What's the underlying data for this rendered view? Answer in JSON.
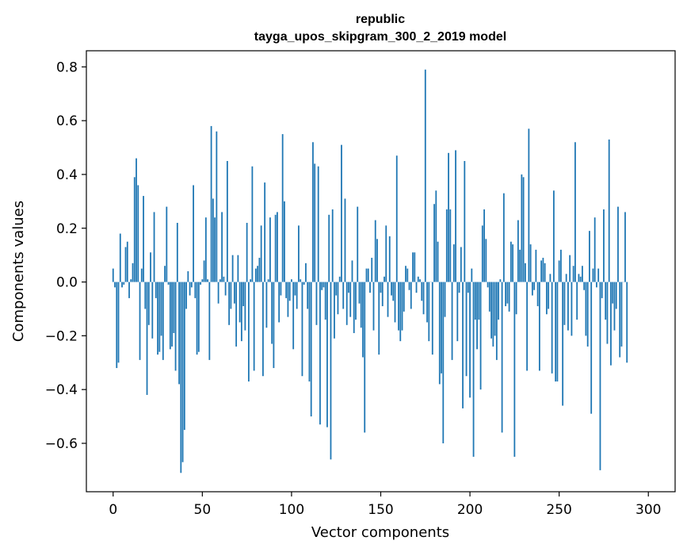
{
  "chart_data": {
    "type": "bar",
    "title_line1": "republic",
    "title_line2": "tayga_upos_skipgram_300_2_2019 model",
    "xlabel": "Vector components",
    "ylabel": "Components values",
    "xlim": [
      -15,
      315
    ],
    "ylim": [
      -0.78,
      0.86
    ],
    "x_ticks": [
      0,
      50,
      100,
      150,
      200,
      250,
      300
    ],
    "x_tick_labels": [
      "0",
      "50",
      "100",
      "150",
      "200",
      "250",
      "300"
    ],
    "y_ticks": [
      -0.6,
      -0.4,
      -0.2,
      0.0,
      0.2,
      0.4,
      0.6,
      0.8
    ],
    "y_tick_labels": [
      "−0.6",
      "−0.4",
      "−0.2",
      "0.0",
      "0.2",
      "0.4",
      "0.6",
      "0.8"
    ],
    "bar_color": "#1f77b4",
    "values": [
      0.05,
      -0.02,
      -0.32,
      -0.3,
      0.18,
      -0.02,
      -0.01,
      0.13,
      0.15,
      -0.06,
      0.01,
      0.07,
      0.39,
      0.46,
      0.36,
      -0.29,
      0.05,
      0.32,
      -0.1,
      -0.42,
      -0.16,
      0.11,
      -0.21,
      0.26,
      -0.06,
      -0.27,
      -0.26,
      -0.2,
      -0.29,
      0.06,
      0.28,
      -0.01,
      -0.25,
      -0.24,
      -0.19,
      -0.33,
      0.22,
      -0.38,
      -0.71,
      -0.67,
      -0.55,
      -0.1,
      0.04,
      -0.05,
      -0.02,
      0.36,
      -0.06,
      -0.27,
      -0.26,
      -0.01,
      0.01,
      0.08,
      0.24,
      0.01,
      -0.29,
      0.58,
      0.31,
      0.24,
      0.56,
      -0.08,
      0.01,
      0.26,
      0.02,
      -0.05,
      0.45,
      -0.16,
      -0.1,
      0.1,
      -0.08,
      -0.24,
      0.1,
      -0.15,
      -0.22,
      -0.09,
      -0.18,
      0.22,
      -0.37,
      0.01,
      0.43,
      -0.33,
      0.05,
      0.06,
      0.09,
      0.21,
      -0.35,
      0.37,
      -0.17,
      0.01,
      0.24,
      -0.23,
      -0.32,
      0.25,
      0.26,
      -0.15,
      -0.05,
      0.55,
      0.3,
      -0.06,
      -0.13,
      -0.07,
      0.01,
      -0.25,
      -0.05,
      -0.1,
      0.21,
      0.01,
      -0.35,
      -0.01,
      0.07,
      -0.1,
      -0.37,
      -0.5,
      0.52,
      0.44,
      -0.16,
      0.43,
      -0.53,
      -0.03,
      -0.02,
      -0.14,
      -0.54,
      0.25,
      -0.66,
      0.27,
      -0.21,
      -0.05,
      -0.12,
      0.02,
      0.51,
      -0.1,
      0.31,
      -0.16,
      -0.04,
      -0.13,
      0.08,
      -0.19,
      -0.14,
      0.28,
      -0.08,
      -0.17,
      -0.28,
      -0.56,
      0.05,
      0.05,
      -0.04,
      0.09,
      -0.18,
      0.23,
      0.16,
      -0.27,
      -0.04,
      -0.09,
      0.02,
      0.21,
      -0.13,
      0.17,
      -0.05,
      -0.07,
      -0.15,
      0.47,
      -0.18,
      -0.22,
      -0.18,
      -0.11,
      0.06,
      0.05,
      -0.03,
      -0.1,
      0.11,
      0.11,
      -0.04,
      0.02,
      0.01,
      -0.07,
      -0.12,
      0.79,
      -0.15,
      -0.22,
      0.0,
      -0.27,
      0.29,
      0.34,
      0.15,
      -0.38,
      -0.34,
      -0.6,
      -0.13,
      0.27,
      0.48,
      0.27,
      -0.29,
      0.14,
      0.49,
      -0.22,
      -0.04,
      0.13,
      -0.47,
      0.45,
      -0.35,
      -0.04,
      -0.43,
      0.05,
      -0.65,
      -0.14,
      -0.25,
      -0.14,
      -0.4,
      0.21,
      0.27,
      0.16,
      -0.02,
      -0.11,
      -0.21,
      -0.24,
      -0.2,
      -0.29,
      -0.14,
      0.01,
      -0.56,
      0.33,
      -0.09,
      -0.08,
      -0.11,
      0.15,
      0.14,
      -0.65,
      -0.12,
      0.23,
      0.12,
      0.4,
      0.39,
      0.07,
      -0.33,
      0.57,
      0.14,
      -0.05,
      -0.03,
      0.12,
      -0.09,
      -0.33,
      0.08,
      0.09,
      0.07,
      -0.12,
      -0.1,
      0.03,
      -0.34,
      0.34,
      -0.37,
      -0.37,
      0.08,
      0.12,
      -0.46,
      -0.16,
      0.03,
      -0.18,
      0.1,
      -0.2,
      0.06,
      0.52,
      -0.14,
      0.03,
      0.02,
      0.06,
      -0.03,
      -0.2,
      -0.24,
      0.19,
      -0.49,
      0.05,
      0.24,
      -0.02,
      0.05,
      -0.7,
      -0.06,
      0.27,
      -0.14,
      -0.23,
      0.53,
      -0.31,
      -0.08,
      -0.18,
      -0.1,
      0.28,
      -0.28,
      -0.24,
      0.0,
      0.26,
      -0.3
    ]
  }
}
